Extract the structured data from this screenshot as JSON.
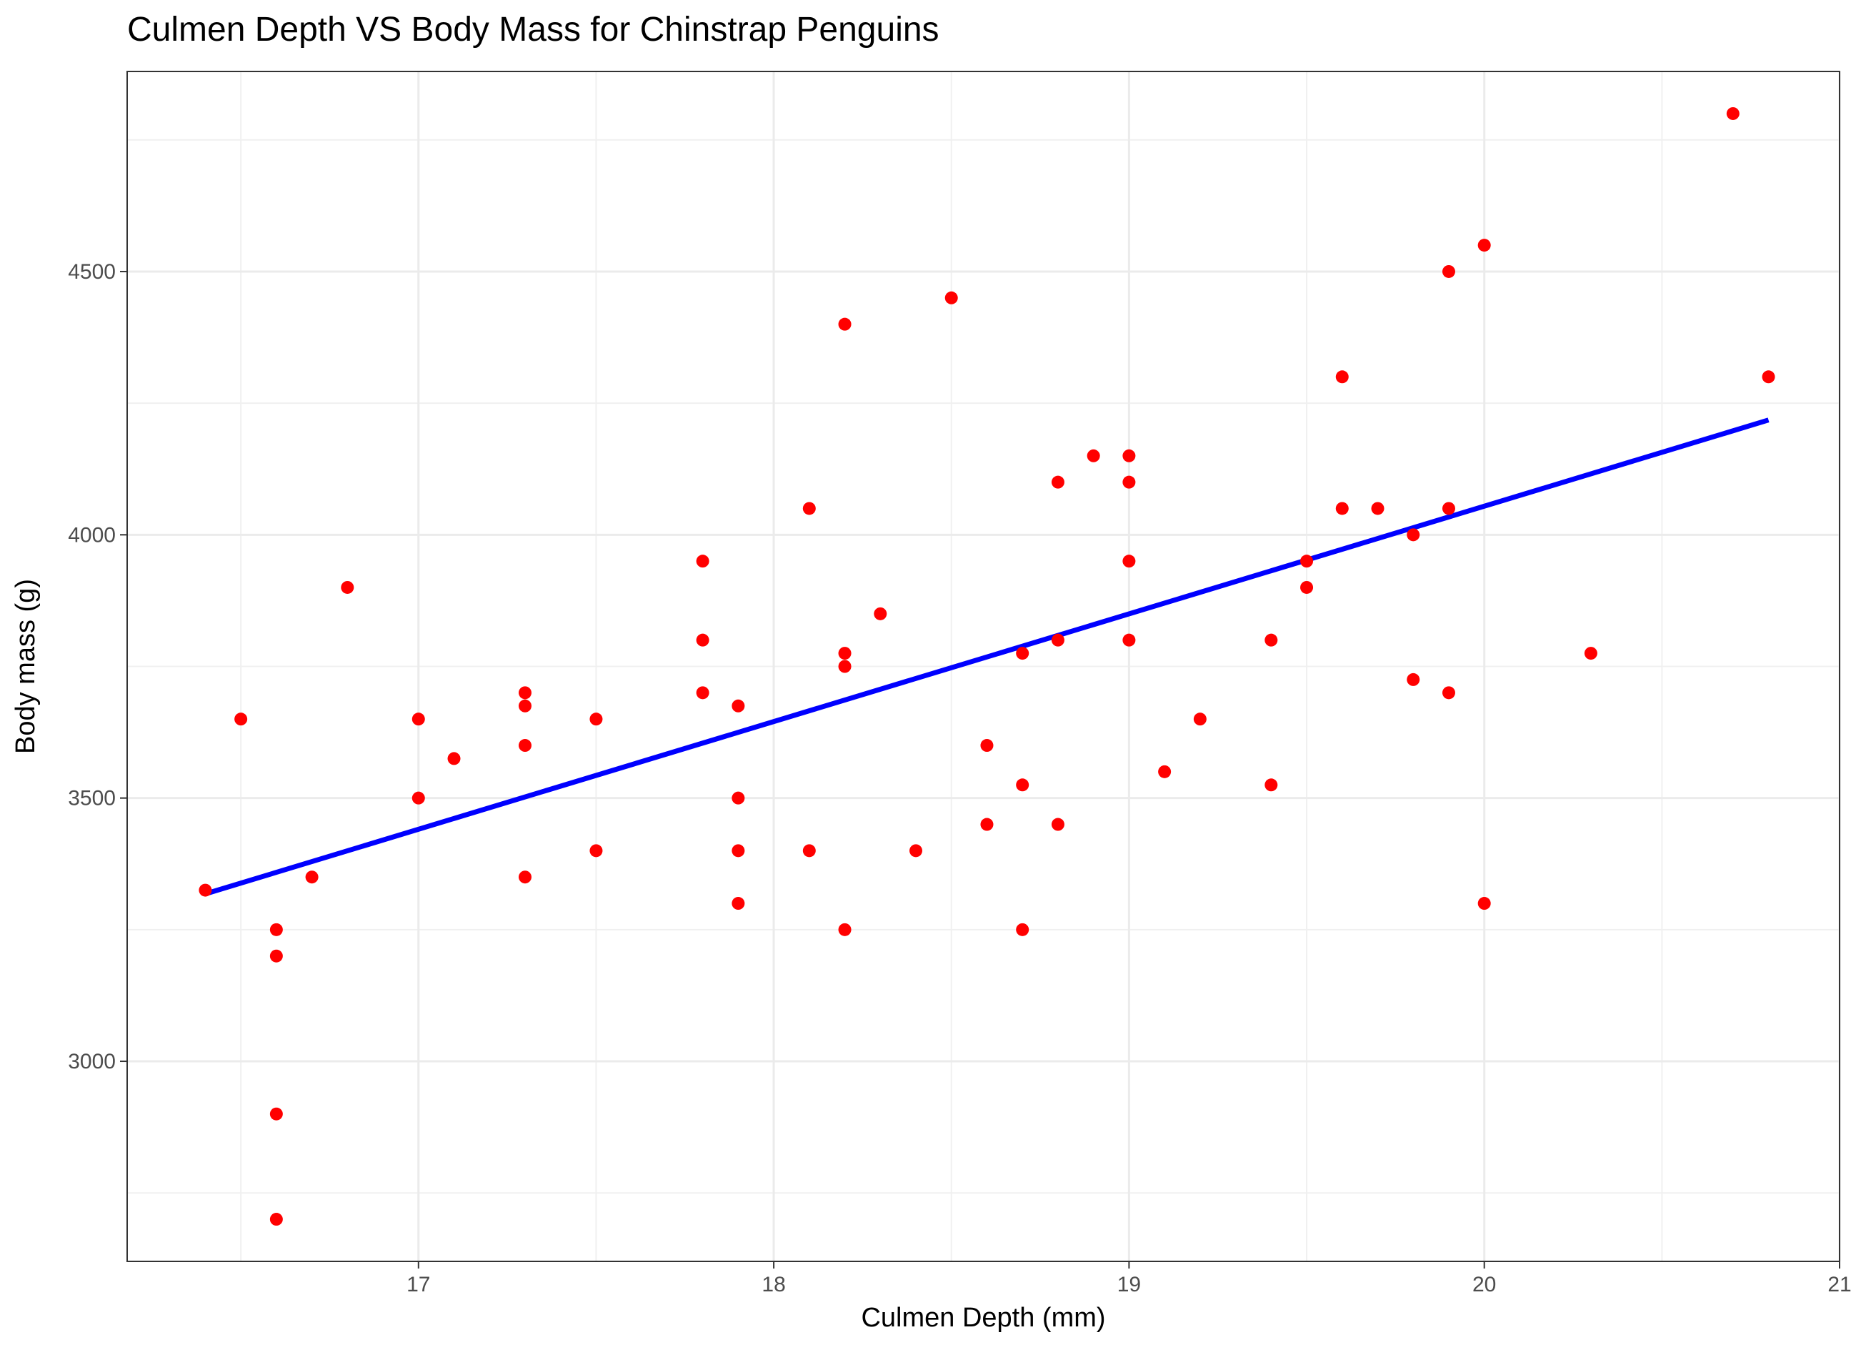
{
  "chart_data": {
    "type": "scatter",
    "title": "Culmen Depth VS Body Mass for Chinstrap Penguins",
    "xlabel": "Culmen Depth (mm)",
    "ylabel": "Body mass (g)",
    "xlim": [
      16.18,
      21.0
    ],
    "ylim": [
      2620,
      4880
    ],
    "x_ticks": [
      17,
      18,
      19,
      20,
      21
    ],
    "x_tick_labels": [
      "17",
      "18",
      "19",
      "20",
      "21"
    ],
    "y_ticks": [
      3000,
      3500,
      4000,
      4500
    ],
    "y_tick_labels": [
      "3000",
      "3500",
      "4000",
      "4500"
    ],
    "x_minor": [
      16.5,
      17.5,
      18.5,
      19.5,
      20.5
    ],
    "y_minor": [
      2750,
      3250,
      3750,
      4250,
      4750
    ],
    "grid": true,
    "point_color": "#ff0000",
    "line_color": "#0000ff",
    "points": [
      [
        16.4,
        3325
      ],
      [
        16.5,
        3650
      ],
      [
        16.6,
        3250
      ],
      [
        16.6,
        3200
      ],
      [
        16.6,
        2900
      ],
      [
        16.6,
        2700
      ],
      [
        16.7,
        3350
      ],
      [
        16.8,
        3900
      ],
      [
        17.0,
        3650
      ],
      [
        17.0,
        3500
      ],
      [
        17.1,
        3575
      ],
      [
        17.3,
        3700
      ],
      [
        17.3,
        3675
      ],
      [
        17.3,
        3600
      ],
      [
        17.3,
        3350
      ],
      [
        17.5,
        3650
      ],
      [
        17.5,
        3400
      ],
      [
        17.8,
        3950
      ],
      [
        17.8,
        3800
      ],
      [
        17.8,
        3700
      ],
      [
        17.9,
        3675
      ],
      [
        17.9,
        3500
      ],
      [
        17.9,
        3400
      ],
      [
        17.9,
        3300
      ],
      [
        18.1,
        4050
      ],
      [
        18.1,
        3400
      ],
      [
        18.2,
        4400
      ],
      [
        18.2,
        3775
      ],
      [
        18.2,
        3750
      ],
      [
        18.2,
        3250
      ],
      [
        18.3,
        3850
      ],
      [
        18.4,
        3400
      ],
      [
        18.5,
        4450
      ],
      [
        18.6,
        3600
      ],
      [
        18.6,
        3450
      ],
      [
        18.7,
        3775
      ],
      [
        18.7,
        3525
      ],
      [
        18.7,
        3250
      ],
      [
        18.8,
        4100
      ],
      [
        18.8,
        3800
      ],
      [
        18.8,
        3450
      ],
      [
        18.9,
        4150
      ],
      [
        19.0,
        4150
      ],
      [
        19.0,
        4100
      ],
      [
        19.0,
        3950
      ],
      [
        19.0,
        3800
      ],
      [
        19.1,
        3550
      ],
      [
        19.2,
        3650
      ],
      [
        19.4,
        3800
      ],
      [
        19.4,
        3525
      ],
      [
        19.5,
        3950
      ],
      [
        19.5,
        3900
      ],
      [
        19.6,
        4300
      ],
      [
        19.6,
        4050
      ],
      [
        19.7,
        4050
      ],
      [
        19.8,
        4000
      ],
      [
        19.8,
        3725
      ],
      [
        19.9,
        4500
      ],
      [
        19.9,
        4050
      ],
      [
        19.9,
        3700
      ],
      [
        20.0,
        4550
      ],
      [
        20.0,
        3300
      ],
      [
        20.3,
        3775
      ],
      [
        20.7,
        4800
      ],
      [
        20.8,
        4300
      ]
    ],
    "trend_line": {
      "x": [
        16.4,
        20.8
      ],
      "y": [
        3318,
        4218
      ]
    }
  }
}
